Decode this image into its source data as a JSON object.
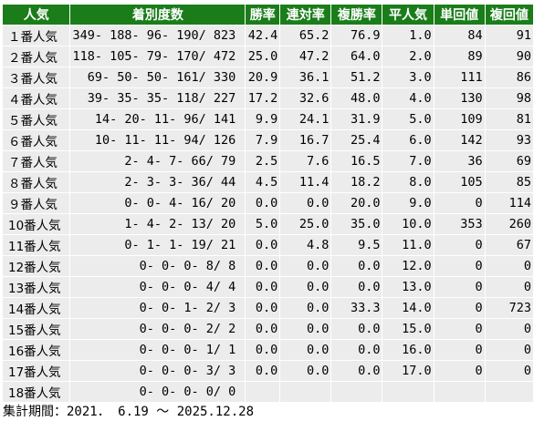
{
  "table": {
    "headers": [
      "人気",
      "着別度数",
      "勝率",
      "連対率",
      "複勝率",
      "平人気",
      "単回値",
      "複回値"
    ],
    "rows": [
      [
        "１番人気",
        "349- 188- 96- 190/ 823",
        "42.4",
        "65.2",
        "76.9",
        "1.0",
        "84",
        "91"
      ],
      [
        "２番人気",
        "118- 105- 79- 170/ 472",
        "25.0",
        "47.2",
        "64.0",
        "2.0",
        "89",
        "90"
      ],
      [
        "３番人気",
        "69- 50- 50- 161/ 330",
        "20.9",
        "36.1",
        "51.2",
        "3.0",
        "111",
        "86"
      ],
      [
        "４番人気",
        "39- 35- 35- 118/ 227",
        "17.2",
        "32.6",
        "48.0",
        "4.0",
        "130",
        "98"
      ],
      [
        "５番人気",
        "14- 20- 11- 96/ 141",
        "9.9",
        "24.1",
        "31.9",
        "5.0",
        "109",
        "81"
      ],
      [
        "６番人気",
        "10- 11- 11- 94/ 126",
        "7.9",
        "16.7",
        "25.4",
        "6.0",
        "142",
        "93"
      ],
      [
        "７番人気",
        "2- 4- 7- 66/ 79",
        "2.5",
        "7.6",
        "16.5",
        "7.0",
        "36",
        "69"
      ],
      [
        "８番人気",
        "2- 3- 3- 36/ 44",
        "4.5",
        "11.4",
        "18.2",
        "8.0",
        "105",
        "85"
      ],
      [
        "９番人気",
        "0- 0- 4- 16/ 20",
        "0.0",
        "0.0",
        "20.0",
        "9.0",
        "0",
        "114"
      ],
      [
        "10番人気",
        "1- 4- 2- 13/ 20",
        "5.0",
        "25.0",
        "35.0",
        "10.0",
        "353",
        "260"
      ],
      [
        "11番人気",
        "0- 1- 1- 19/ 21",
        "0.0",
        "4.8",
        "9.5",
        "11.0",
        "0",
        "67"
      ],
      [
        "12番人気",
        "0- 0- 0- 8/ 8",
        "0.0",
        "0.0",
        "0.0",
        "12.0",
        "0",
        "0"
      ],
      [
        "13番人気",
        "0- 0- 0- 4/ 4",
        "0.0",
        "0.0",
        "0.0",
        "13.0",
        "0",
        "0"
      ],
      [
        "14番人気",
        "0- 0- 1- 2/ 3",
        "0.0",
        "0.0",
        "33.3",
        "14.0",
        "0",
        "723"
      ],
      [
        "15番人気",
        "0- 0- 0- 2/ 2",
        "0.0",
        "0.0",
        "0.0",
        "15.0",
        "0",
        "0"
      ],
      [
        "16番人気",
        "0- 0- 0- 1/ 1",
        "0.0",
        "0.0",
        "0.0",
        "16.0",
        "0",
        "0"
      ],
      [
        "17番人気",
        "0- 0- 0- 3/ 3",
        "0.0",
        "0.0",
        "0.0",
        "17.0",
        "0",
        "0"
      ],
      [
        "18番人気",
        "0- 0- 0- 0/ 0",
        "",
        "",
        "",
        "",
        "",
        ""
      ]
    ]
  },
  "footer": "集計期間：2021． 6.19 ～ 2025.12.28",
  "colors": {
    "header_bg": "#1a7d1a",
    "header_text": "#ffffff",
    "cell_bg": "#ececec"
  }
}
